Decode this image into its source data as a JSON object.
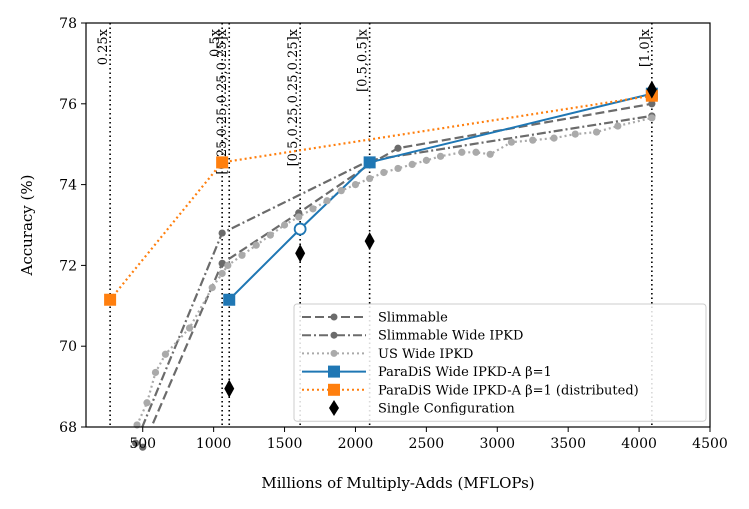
{
  "chart_data": {
    "type": "line",
    "xlabel": "Millions of Multiply-Adds (MFLOPs)",
    "ylabel": "Accuracy (%)",
    "xlim": [
      100,
      4500
    ],
    "ylim": [
      68,
      78
    ],
    "xticks": [
      500,
      1000,
      1500,
      2000,
      2500,
      3000,
      3500,
      4000,
      4500
    ],
    "yticks": [
      68,
      70,
      72,
      74,
      76,
      78
    ],
    "grid": false,
    "legend_position": "lower-right",
    "vertical_lines": [
      {
        "x": 270,
        "label": "0.25x"
      },
      {
        "x": 1060,
        "label": "0.5x"
      },
      {
        "x": 1110,
        "label": "[0.25,0.25,0.25,0.25]x"
      },
      {
        "x": 1610,
        "label": "[0.5,0.25,0.25,0.25]x"
      },
      {
        "x": 2100,
        "label": "[0.5,0.5]x"
      },
      {
        "x": 4090,
        "label": "[1.0]x"
      }
    ],
    "series": [
      {
        "name": "Slimmable",
        "color": "#6b6b6b",
        "style": "dashed",
        "marker": "circle",
        "x": [
          500,
          1060,
          1600,
          2100,
          2300,
          4090
        ],
        "y": [
          67.5,
          72.05,
          73.3,
          74.5,
          74.9,
          76.0
        ]
      },
      {
        "name": "Slimmable Wide IPKD",
        "color": "#6b6b6b",
        "style": "dashdot",
        "marker": "circle",
        "x": [
          450,
          1060,
          2100,
          4090
        ],
        "y": [
          67.6,
          72.8,
          74.6,
          75.7
        ]
      },
      {
        "name": "US Wide IPKD",
        "color": "#aaaaaa",
        "style": "dotted",
        "marker": "circle",
        "x": [
          460,
          530,
          590,
          660,
          830,
          990,
          1060,
          1100,
          1200,
          1300,
          1400,
          1500,
          1600,
          1700,
          1800,
          1900,
          2000,
          2100,
          2200,
          2300,
          2400,
          2500,
          2600,
          2750,
          2850,
          2950,
          3100,
          3250,
          3400,
          3550,
          3700,
          3850,
          4090
        ],
        "y": [
          68.05,
          68.6,
          69.35,
          69.8,
          70.45,
          71.45,
          71.8,
          72.0,
          72.25,
          72.5,
          72.75,
          73.0,
          73.2,
          73.4,
          73.6,
          73.85,
          74.0,
          74.15,
          74.3,
          74.4,
          74.5,
          74.6,
          74.7,
          74.8,
          74.8,
          74.75,
          75.05,
          75.1,
          75.15,
          75.25,
          75.3,
          75.45,
          75.65
        ]
      },
      {
        "name": "ParaDiS Wide IPKD-A β=1",
        "color": "#1f77b4",
        "style": "solid",
        "marker": "square",
        "x": [
          1110,
          1610,
          2100,
          4090
        ],
        "y": [
          71.15,
          72.9,
          74.55,
          76.25
        ],
        "hollow_points": [
          1
        ]
      },
      {
        "name": "ParaDiS Wide IPKD-A β=1 (distributed)",
        "color": "#ff7f0e",
        "style": "dotted",
        "marker": "square",
        "x": [
          270,
          1060,
          4090
        ],
        "y": [
          71.15,
          74.55,
          76.2
        ]
      },
      {
        "name": "Single Configuration",
        "color": "#000000",
        "style": "none",
        "marker": "diamond",
        "x": [
          1110,
          1610,
          2100,
          4090
        ],
        "y": [
          68.95,
          72.3,
          72.6,
          76.35
        ]
      }
    ]
  }
}
